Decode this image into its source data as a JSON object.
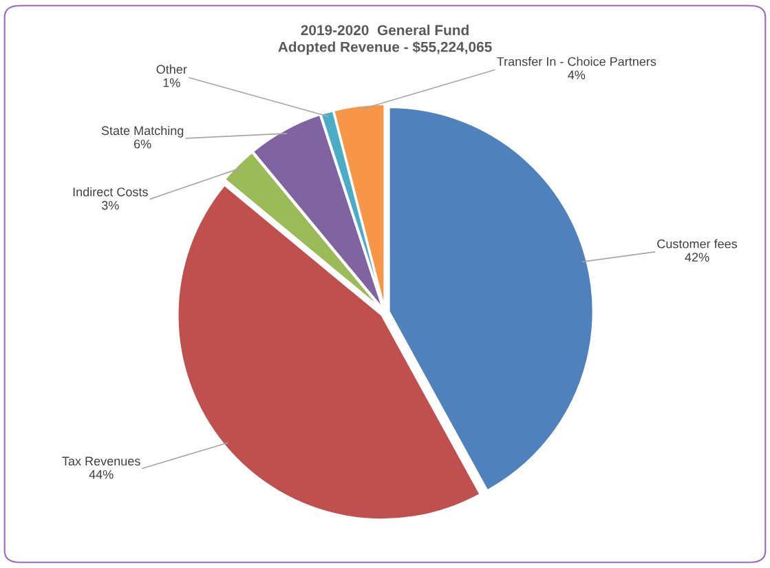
{
  "chart_data": {
    "type": "pie",
    "title": "2019-2020  General Fund\nAdopted Revenue - $55,224,065",
    "categories": [
      "Customer fees",
      "Tax Revenues",
      "Indirect Costs",
      "State Matching",
      "Other",
      "Transfer In - Choice Partners"
    ],
    "values": [
      42,
      44,
      3,
      6,
      1,
      4
    ],
    "value_labels": [
      "42%",
      "44%",
      "3%",
      "6%",
      "1%",
      "4%"
    ],
    "colors": [
      "#4f81bd",
      "#c0504d",
      "#9bbb59",
      "#8064a2",
      "#4bacc6",
      "#f79646"
    ],
    "legend": false
  }
}
